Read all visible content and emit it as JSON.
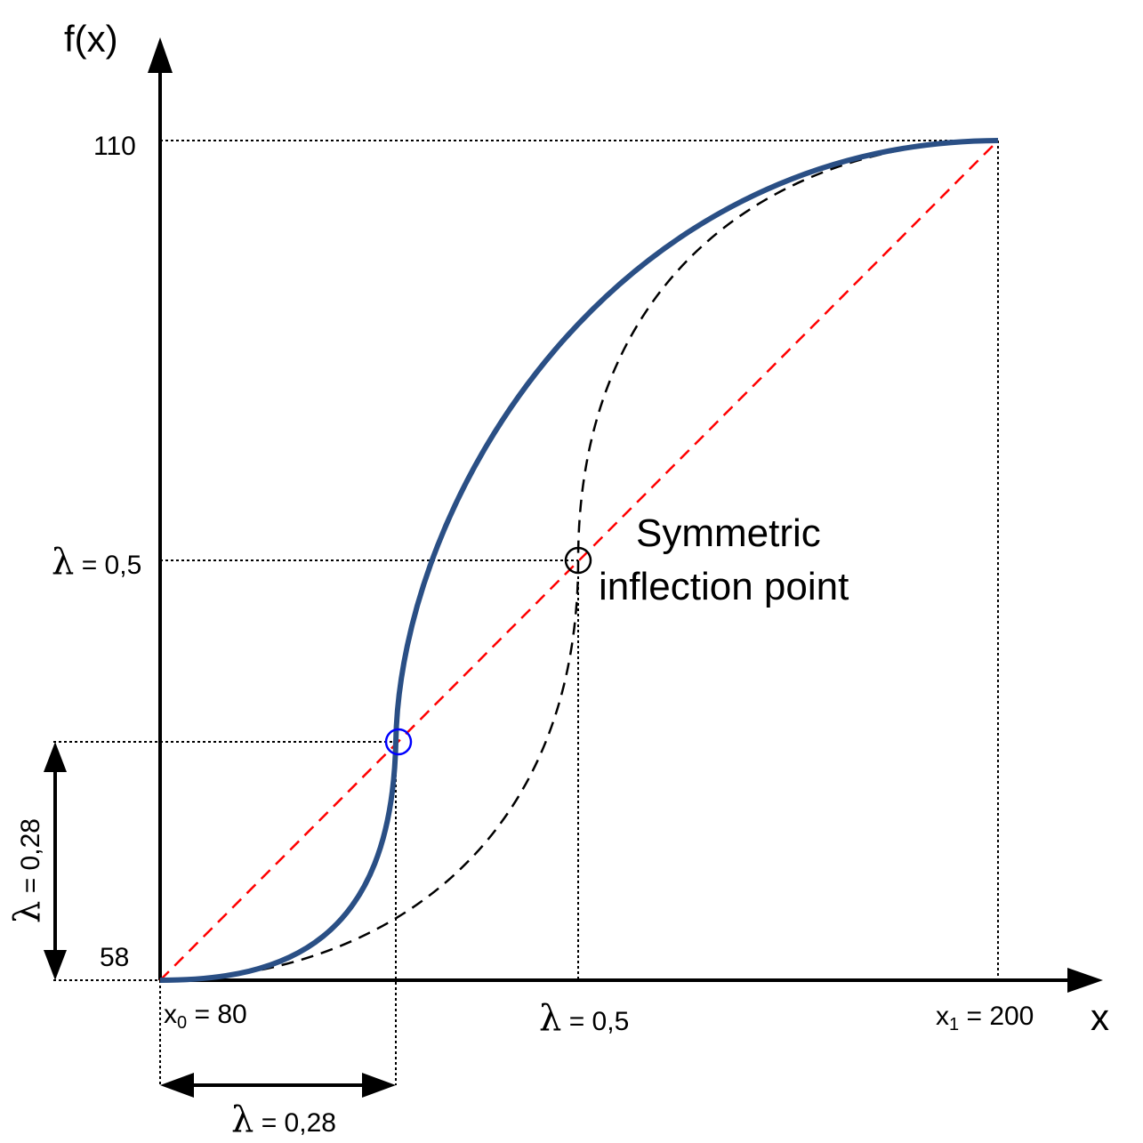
{
  "axes": {
    "y_label": "f(x)",
    "x_label": "x",
    "y_top_value": "110",
    "y_bottom_value": "58",
    "x0_base": "x",
    "x0_sub": "0",
    "x0_value": " = 80",
    "x1_base": "x",
    "x1_sub": "1",
    "x1_value": " = 200"
  },
  "lambda_symbol": "λ",
  "labels": {
    "lambda_half_y_value": " = 0,5",
    "lambda_half_x_value": " = 0,5",
    "lambda_028_y_value": " = 0,28",
    "lambda_028_x_value": " = 0,28",
    "annotation_line1": "Symmetric",
    "annotation_line2": "inflection point"
  },
  "chart_data": {
    "type": "line",
    "x_range": [
      80,
      200
    ],
    "y_range": [
      58,
      110
    ],
    "series": [
      {
        "style": "solid",
        "color": "#2a4f85",
        "inflection_lambda": 0.28
      },
      {
        "style": "dashed",
        "color": "#000000",
        "inflection_lambda": 0.5
      },
      {
        "style": "dashed",
        "color": "#ff0000",
        "shape": "straight line"
      }
    ],
    "markers": [
      {
        "lambda": 0.28,
        "color": "#0000ff"
      },
      {
        "lambda": 0.5,
        "color": "#000000"
      }
    ]
  }
}
